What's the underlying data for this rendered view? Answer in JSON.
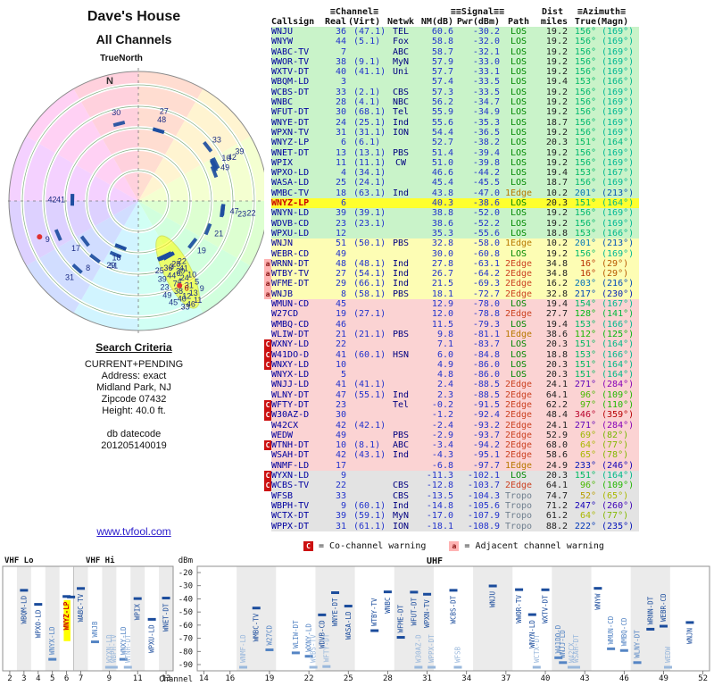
{
  "title": {
    "line1": "Dave's House",
    "line2": "All Channels",
    "compass": "TrueNorth"
  },
  "search": {
    "heading": "Search Criteria",
    "lines": [
      "CURRENT+PENDING",
      "Address: exact",
      "Midland Park, NJ",
      "Zipcode 07432",
      "Height: 40.0 ft."
    ],
    "datecode_label": "db datecode",
    "datecode": "201205140019",
    "link": "www.tvfool.com"
  },
  "table": {
    "group_headers": [
      "≡Channel≡",
      "≡≡Signal≡≡",
      "Dist",
      "≡Azimuth≡"
    ],
    "col_headers": [
      "Callsign",
      "Real",
      "(Virt)",
      "Netwk",
      "NM(dB)",
      "Pwr(dBm)",
      "Path",
      "miles",
      "True",
      "(Magn)"
    ]
  },
  "legend": {
    "c_symbol": "C",
    "c_text": "= Co-channel warning",
    "a_symbol": "a",
    "a_text": "= Adjacent channel warning"
  },
  "colors": {
    "accent_strong": "#c9f3c9",
    "accent_mid": "#fdfdb4",
    "accent_weak": "#fbd3d3",
    "accent_gray": "#e3e3e3",
    "highlight": "#ffff2e"
  },
  "chart_data": {
    "type": "scatter",
    "title": "Signal strength by channel",
    "xlabel": "Channel",
    "ylabel": "dBm",
    "ylim": [
      -90,
      -20
    ],
    "y_ticks": [
      -20,
      -30,
      -40,
      -50,
      -60,
      -70,
      -80,
      -90
    ],
    "vhf_ticks": [
      2,
      3,
      4,
      5,
      6,
      7,
      9,
      11,
      13
    ],
    "uhf_ticks": [
      14,
      16,
      19,
      22,
      25,
      28,
      31,
      34,
      37,
      40,
      43,
      46,
      49,
      52
    ],
    "x_sections": [
      {
        "label": "VHF Lo",
        "channels": [
          2,
          6
        ]
      },
      {
        "label": "VHF Hi",
        "channels": [
          7,
          13
        ]
      },
      {
        "label": "UHF",
        "channels": [
          14,
          52
        ]
      }
    ],
    "radar": {
      "north": "N"
    },
    "station_fields": [
      "callsign",
      "real_ch",
      "virtual",
      "network",
      "nm_db",
      "pwr_dbm",
      "path",
      "dist_miles",
      "azimuth_true",
      "azimuth_magn",
      "warning",
      "pending_highlight"
    ],
    "stations": [
      [
        "WNJU",
        36,
        "(47.1)",
        "TEL",
        60.6,
        -30.2,
        "LOS",
        19.2,
        156,
        169,
        "",
        false
      ],
      [
        "WNYW",
        44,
        "(5.1)",
        "Fox",
        58.8,
        -32.0,
        "LOS",
        19.2,
        156,
        169,
        "",
        false
      ],
      [
        "WABC-TV",
        7,
        "",
        "ABC",
        58.7,
        -32.1,
        "LOS",
        19.2,
        156,
        169,
        "",
        false
      ],
      [
        "WWOR-TV",
        38,
        "(9.1)",
        "MyN",
        57.9,
        -33.0,
        "LOS",
        19.2,
        156,
        169,
        "",
        false
      ],
      [
        "WXTV-DT",
        40,
        "(41.1)",
        "Uni",
        57.7,
        -33.1,
        "LOS",
        19.2,
        156,
        169,
        "",
        false
      ],
      [
        "WBQM-LD",
        3,
        "",
        "",
        57.4,
        -33.5,
        "LOS",
        19.4,
        153,
        166,
        "",
        false
      ],
      [
        "WCBS-DT",
        33,
        "(2.1)",
        "CBS",
        57.3,
        -33.5,
        "LOS",
        19.2,
        156,
        169,
        "",
        false
      ],
      [
        "WNBC",
        28,
        "(4.1)",
        "NBC",
        56.2,
        -34.7,
        "LOS",
        19.2,
        156,
        169,
        "",
        false
      ],
      [
        "WFUT-DT",
        30,
        "(68.1)",
        "Tel",
        55.9,
        -34.9,
        "LOS",
        19.2,
        156,
        169,
        "",
        false
      ],
      [
        "WNYE-DT",
        24,
        "(25.1)",
        "Ind",
        55.6,
        -35.3,
        "LOS",
        18.7,
        156,
        169,
        "",
        false
      ],
      [
        "WPXN-TV",
        31,
        "(31.1)",
        "ION",
        54.4,
        -36.5,
        "LOS",
        19.2,
        156,
        169,
        "",
        false
      ],
      [
        "WNYZ-LP",
        6,
        "(6.1)",
        "",
        52.7,
        -38.2,
        "LOS",
        20.3,
        151,
        164,
        "",
        false
      ],
      [
        "WNET-DT",
        13,
        "(13.1)",
        "PBS",
        51.4,
        -39.4,
        "LOS",
        19.2,
        156,
        169,
        "",
        false
      ],
      [
        "WPIX",
        11,
        "(11.1)",
        "CW",
        51.0,
        -39.8,
        "LOS",
        19.2,
        156,
        169,
        "",
        false
      ],
      [
        "WPXO-LD",
        4,
        "(34.1)",
        "",
        46.6,
        -44.2,
        "LOS",
        19.4,
        153,
        167,
        "",
        false
      ],
      [
        "WASA-LD",
        25,
        "(24.1)",
        "",
        45.4,
        -45.5,
        "LOS",
        18.7,
        156,
        169,
        "",
        false
      ],
      [
        "WMBC-TV",
        18,
        "(63.1)",
        "Ind",
        43.8,
        -47.0,
        "1Edge",
        10.2,
        201,
        213,
        "",
        false
      ],
      [
        "WNYZ-LP",
        6,
        "",
        "",
        40.3,
        -38.6,
        "LOS",
        20.3,
        151,
        164,
        "",
        true
      ],
      [
        "WNYN-LD",
        39,
        "(39.1)",
        "",
        38.8,
        -52.0,
        "LOS",
        19.2,
        156,
        169,
        "",
        false
      ],
      [
        "WDVB-CD",
        23,
        "(23.1)",
        "",
        38.6,
        -52.2,
        "LOS",
        19.2,
        156,
        169,
        "",
        false
      ],
      [
        "WPXU-LD",
        12,
        "",
        "",
        35.3,
        -55.6,
        "LOS",
        18.8,
        153,
        166,
        "",
        false
      ],
      [
        "WNJN",
        51,
        "(50.1)",
        "PBS",
        32.8,
        -58.0,
        "1Edge",
        10.2,
        201,
        213,
        "",
        false
      ],
      [
        "WEBR-CD",
        49,
        "",
        "",
        30.0,
        -60.8,
        "LOS",
        19.2,
        156,
        169,
        "",
        false
      ],
      [
        "WRNN-DT",
        48,
        "(48.1)",
        "Ind",
        27.8,
        -63.1,
        "2Edge",
        34.8,
        16,
        29,
        "a",
        false
      ],
      [
        "WTBY-TV",
        27,
        "(54.1)",
        "Ind",
        26.7,
        -64.2,
        "2Edge",
        34.8,
        16,
        29,
        "a",
        false
      ],
      [
        "WFME-DT",
        29,
        "(66.1)",
        "Ind",
        21.5,
        -69.3,
        "2Edge",
        16.2,
        203,
        216,
        "a",
        false
      ],
      [
        "WNJB",
        8,
        "(58.1)",
        "PBS",
        18.1,
        -72.7,
        "2Edge",
        32.8,
        217,
        230,
        "a",
        false
      ],
      [
        "WMUN-CD",
        45,
        "",
        "",
        12.9,
        -78.0,
        "LOS",
        19.4,
        154,
        167,
        "",
        false
      ],
      [
        "W27CD",
        19,
        "(27.1)",
        "",
        12.0,
        -78.8,
        "2Edge",
        27.7,
        128,
        141,
        "",
        false
      ],
      [
        "WMBQ-CD",
        46,
        "",
        "",
        11.5,
        -79.3,
        "LOS",
        19.4,
        153,
        166,
        "",
        false
      ],
      [
        "WLIW-DT",
        21,
        "(21.1)",
        "PBS",
        9.8,
        -81.1,
        "1Edge",
        38.6,
        112,
        125,
        "",
        false
      ],
      [
        "WXNY-LD",
        22,
        "",
        "",
        7.1,
        -83.7,
        "LOS",
        20.3,
        151,
        164,
        "C",
        false
      ],
      [
        "W41DO-D",
        41,
        "(60.1)",
        "HSN",
        6.0,
        -84.8,
        "LOS",
        18.8,
        153,
        166,
        "C",
        false
      ],
      [
        "WNXY-LD",
        10,
        "",
        "",
        4.9,
        -86.0,
        "LOS",
        20.3,
        151,
        164,
        "C",
        false
      ],
      [
        "WNYX-LD",
        5,
        "",
        "",
        4.8,
        -86.0,
        "LOS",
        20.3,
        151,
        164,
        "",
        false
      ],
      [
        "WNJJ-LD",
        41,
        "(41.1)",
        "",
        2.4,
        -88.5,
        "2Edge",
        24.1,
        271,
        284,
        "",
        false
      ],
      [
        "WLNY-DT",
        47,
        "(55.1)",
        "Ind",
        2.3,
        -88.5,
        "2Edge",
        64.1,
        96,
        109,
        "",
        false
      ],
      [
        "WFTY-DT",
        23,
        "",
        "Tel",
        -0.2,
        -91.5,
        "2Edge",
        62.2,
        97,
        110,
        "C",
        false
      ],
      [
        "W30AZ-D",
        30,
        "",
        "",
        -1.2,
        -92.4,
        "2Edge",
        48.4,
        346,
        359,
        "C",
        false
      ],
      [
        "W42CX",
        42,
        "(42.1)",
        "",
        -2.4,
        -93.2,
        "2Edge",
        24.1,
        271,
        284,
        "",
        false
      ],
      [
        "WEDW",
        49,
        "",
        "PBS",
        -2.9,
        -93.7,
        "2Edge",
        52.9,
        69,
        82,
        "",
        false
      ],
      [
        "WTNH-DT",
        10,
        "(8.1)",
        "ABC",
        -3.4,
        -94.2,
        "2Edge",
        68.0,
        64,
        77,
        "C",
        false
      ],
      [
        "WSAH-DT",
        42,
        "(43.1)",
        "Ind",
        -4.3,
        -95.1,
        "2Edge",
        58.6,
        65,
        78,
        "",
        false
      ],
      [
        "WNMF-LD",
        17,
        "",
        "",
        -6.8,
        -97.7,
        "1Edge",
        24.9,
        233,
        246,
        "",
        false
      ],
      [
        "WYXN-LD",
        9,
        "",
        "",
        -11.3,
        -102.1,
        "LOS",
        20.3,
        151,
        164,
        "C",
        false
      ],
      [
        "WCBS-TV",
        22,
        "",
        "CBS",
        -12.8,
        -103.7,
        "2Edge",
        64.1,
        96,
        109,
        "C",
        false
      ],
      [
        "WFSB",
        33,
        "",
        "CBS",
        -13.5,
        -104.3,
        "Tropo",
        74.7,
        52,
        65,
        "",
        false
      ],
      [
        "WBPH-TV",
        9,
        "(60.1)",
        "Ind",
        -14.8,
        -105.6,
        "Tropo",
        71.2,
        247,
        260,
        "",
        false
      ],
      [
        "WCTX-DT",
        39,
        "(59.1)",
        "MyN",
        -17.0,
        -107.9,
        "Tropo",
        61.2,
        64,
        77,
        "",
        false
      ],
      [
        "WPPX-DT",
        31,
        "(61.1)",
        "ION",
        -18.1,
        -108.9,
        "Tropo",
        88.2,
        222,
        235,
        "",
        false
      ]
    ]
  }
}
